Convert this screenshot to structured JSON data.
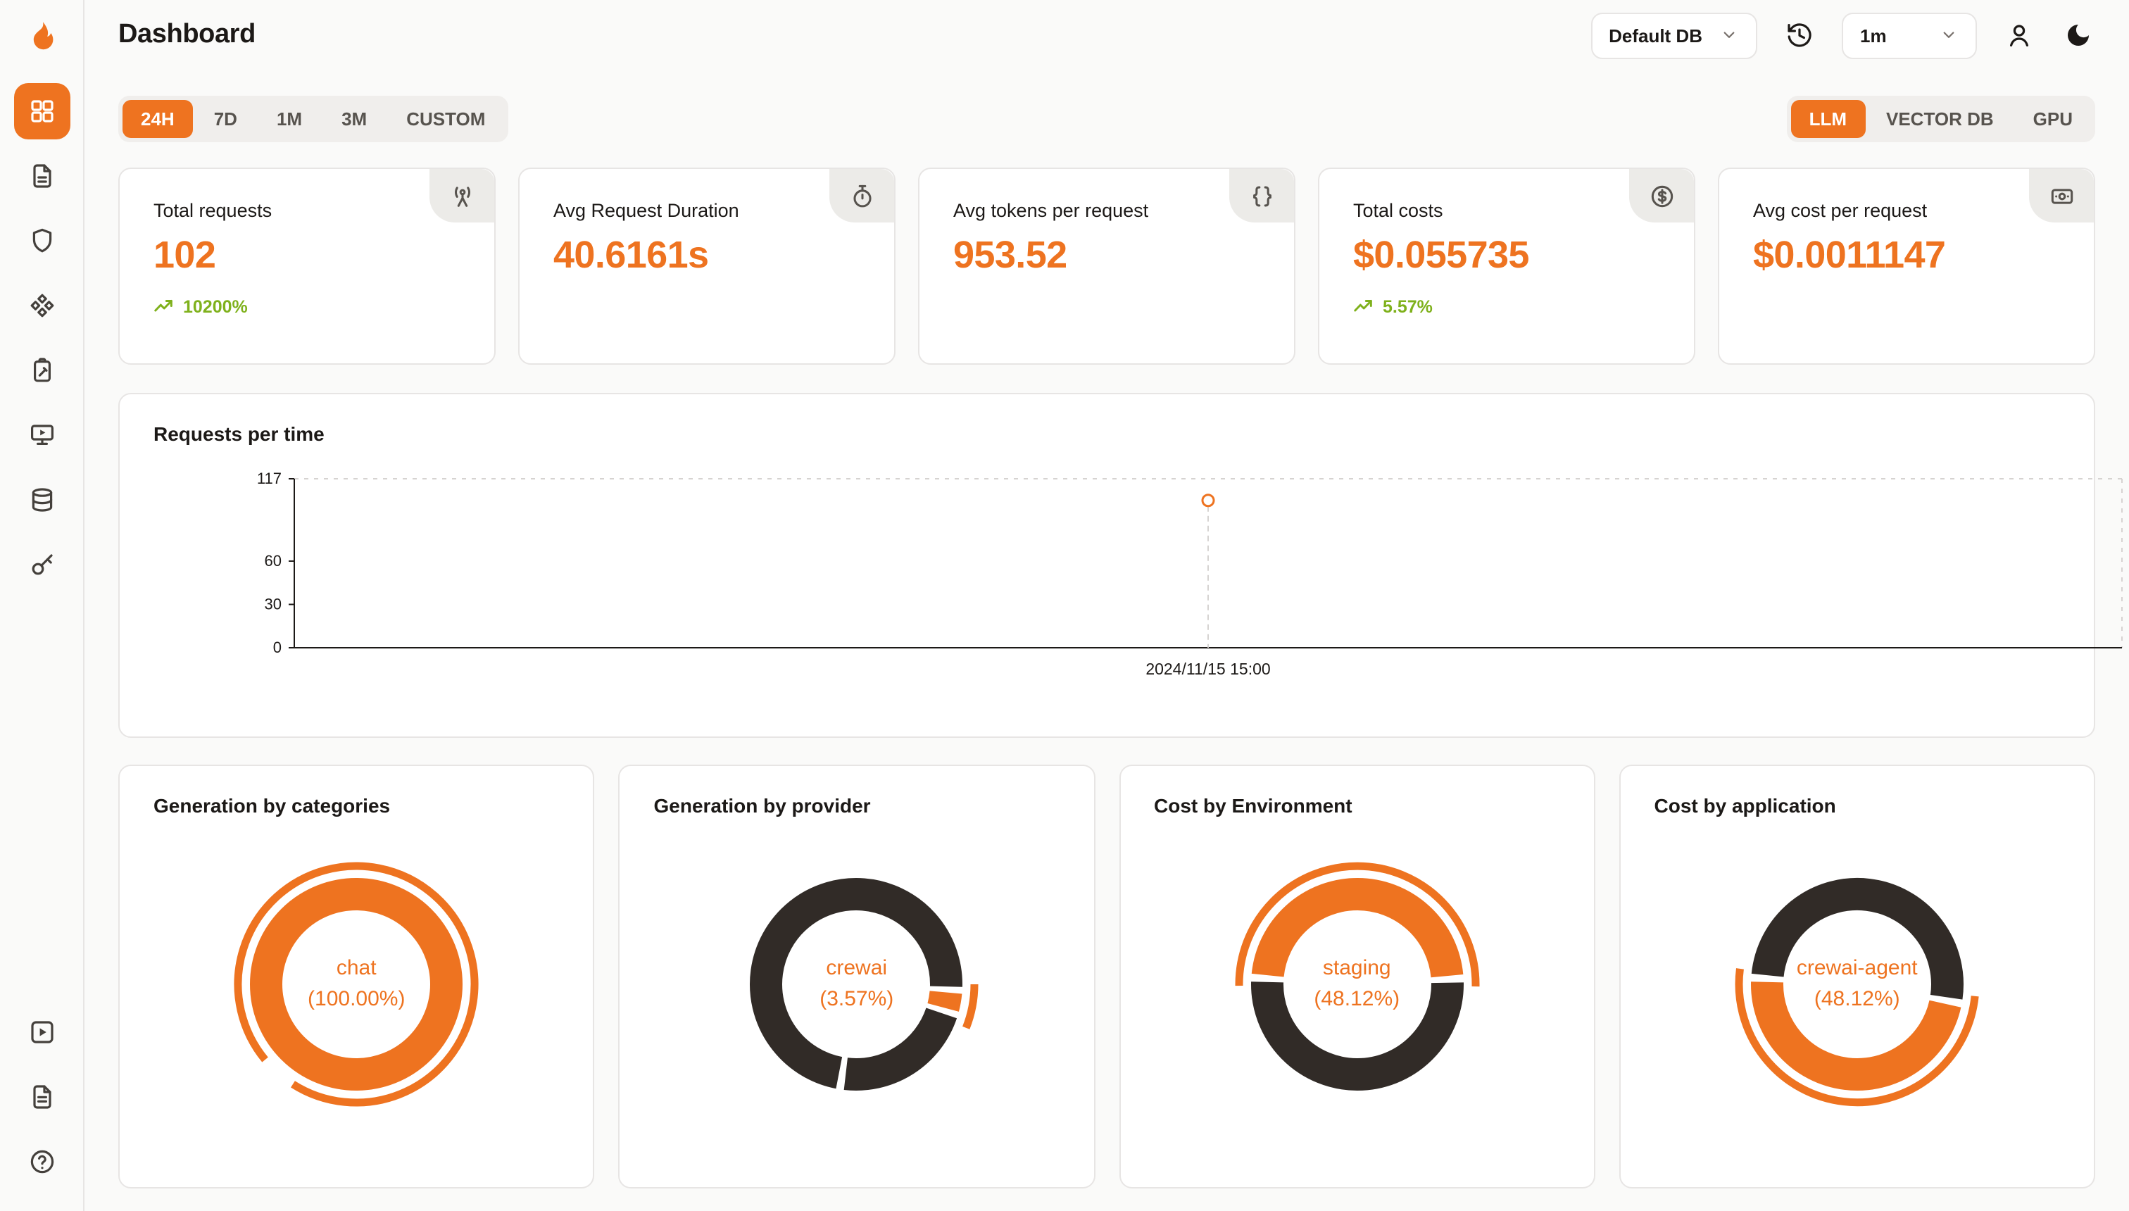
{
  "theme": {
    "accent": "#ee7320",
    "dark": "#312b27",
    "green": "#7fb11c"
  },
  "header": {
    "title": "Dashboard",
    "database_select": {
      "value": "Default DB",
      "icon": "chevron-down-icon"
    },
    "refresh_interval_select": {
      "value": "1m",
      "icon": "chevron-down-icon"
    },
    "icons": [
      "history-icon",
      "user-icon",
      "moon-icon"
    ]
  },
  "sidebar": {
    "logo_icon": "flame-logo-icon",
    "items": [
      {
        "icon": "layout-grid-icon",
        "active": true
      },
      {
        "icon": "file-icon",
        "active": false
      },
      {
        "icon": "shield-icon",
        "active": false
      },
      {
        "icon": "component-icon",
        "active": false
      },
      {
        "icon": "clipboard-edit-icon",
        "active": false
      },
      {
        "icon": "monitor-play-icon",
        "active": false
      },
      {
        "icon": "database-icon",
        "active": false
      },
      {
        "icon": "key-icon",
        "active": false
      }
    ],
    "footer_items": [
      {
        "icon": "square-play-icon"
      },
      {
        "icon": "file-text-icon"
      },
      {
        "icon": "help-circle-icon"
      }
    ]
  },
  "filters": {
    "time_ranges": [
      "24H",
      "7D",
      "1M",
      "3M",
      "CUSTOM"
    ],
    "active_time_range": "24H",
    "sources": [
      "LLM",
      "VECTOR DB",
      "GPU"
    ],
    "active_source": "LLM"
  },
  "stats": [
    {
      "label": "Total requests",
      "value": "102",
      "trend": "10200%",
      "icon": "radio-tower-icon"
    },
    {
      "label": "Avg Request Duration",
      "value": "40.6161s",
      "icon": "stopwatch-icon"
    },
    {
      "label": "Avg tokens per request",
      "value": "953.52",
      "icon": "braces-icon"
    },
    {
      "label": "Total costs",
      "value": "$0.055735",
      "trend": "5.57%",
      "icon": "circle-dollar-icon"
    },
    {
      "label": "Avg cost per request",
      "value": "$0.0011147",
      "icon": "banknote-icon"
    }
  ],
  "chart_data": [
    {
      "type": "line",
      "title": "Requests per time",
      "ylim": [
        0,
        117
      ],
      "yticks": [
        0,
        30,
        60,
        117
      ],
      "grid": false,
      "points": [
        {
          "x_label": "2024/11/15 15:00",
          "x_frac": 0.5,
          "value": 102
        }
      ]
    },
    {
      "type": "pie",
      "title": "Generation by categories",
      "center": [
        "chat",
        "(100.00%)"
      ],
      "segments": [
        {
          "label": "chat",
          "value": 100.0,
          "color": "accent",
          "start": 0
        }
      ],
      "emphasis": {
        "start": 0.64,
        "sweep": 0.95
      }
    },
    {
      "type": "pie",
      "title": "Generation by provider",
      "center": [
        "crewai",
        "(3.57%)"
      ],
      "segments": [
        {
          "label": "crewai",
          "value": 3.57,
          "color": "accent",
          "start": 0.26
        },
        {
          "label": "other",
          "value": 22.86,
          "color": "dark",
          "start": 0.2957
        },
        {
          "label": "other",
          "value": 73.57,
          "color": "dark",
          "start": 0.5243
        }
      ],
      "emphasis": {
        "start": 0.25,
        "sweep": 0.06
      }
    },
    {
      "type": "pie",
      "title": "Cost by Environment",
      "center": [
        "staging",
        "(48.12%)"
      ],
      "segments": [
        {
          "label": "staging",
          "value": 48.12,
          "color": "accent",
          "start": 0.76
        },
        {
          "label": "other",
          "value": 51.88,
          "color": "dark",
          "start": 0.2412
        }
      ],
      "emphasis": {
        "start": 0.748,
        "sweep": 0.505
      }
    },
    {
      "type": "pie",
      "title": "Cost by application",
      "center": [
        "crewai-agent",
        "(48.12%)"
      ],
      "segments": [
        {
          "label": "other",
          "value": 51.88,
          "color": "dark",
          "start": 0.76
        },
        {
          "label": "crewai-agent",
          "value": 48.12,
          "color": "accent",
          "start": 0.2788
        }
      ],
      "emphasis": {
        "start": 0.266,
        "sweep": 0.505
      }
    }
  ]
}
